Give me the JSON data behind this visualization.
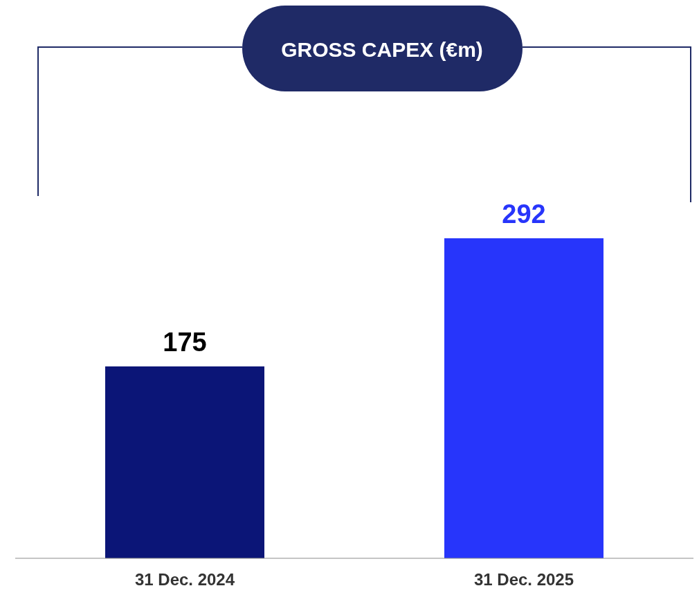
{
  "chart_data": {
    "type": "bar",
    "title": "GROSS CAPEX (€m)",
    "categories": [
      "31 Dec. 2024",
      "31 Dec. 2025"
    ],
    "values": [
      175,
      292
    ],
    "colors": [
      "#0b1577",
      "#2735fb"
    ],
    "data_labels": true
  }
}
